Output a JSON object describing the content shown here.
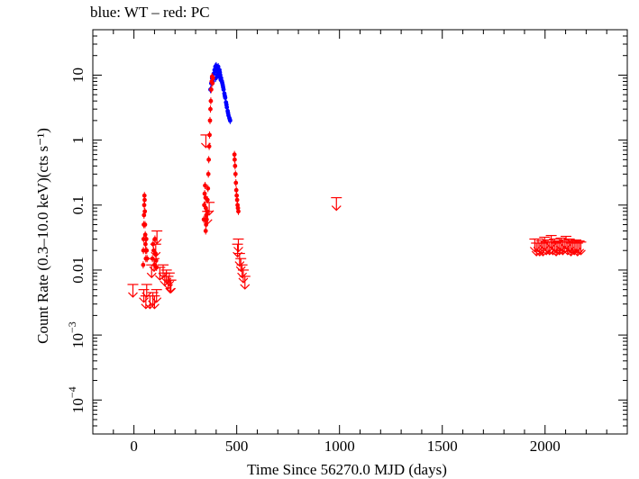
{
  "chart_data": {
    "type": "scatter",
    "title": "blue: WT – red: PC",
    "xlabel": "Time Since 56270.0 MJD (days)",
    "ylabel": "Count Rate (0.3–10.0 keV)(cts s⁻¹)",
    "xscale": "linear",
    "yscale": "log",
    "xlim": [
      -200,
      2400
    ],
    "ylim": [
      3e-05,
      50
    ],
    "x_ticks": [
      0,
      500,
      1000,
      1500,
      2000
    ],
    "x_tick_labels": [
      "0",
      "500",
      "1000",
      "1500",
      "2000"
    ],
    "y_ticks": [
      0.0001,
      0.001,
      0.01,
      0.1,
      1,
      10
    ],
    "y_tick_labels": [
      {
        "base": "10",
        "exp": "−4"
      },
      {
        "base": "10",
        "exp": "−3"
      },
      {
        "base": "0.01",
        "exp": ""
      },
      {
        "base": "0.1",
        "exp": ""
      },
      {
        "base": "1",
        "exp": ""
      },
      {
        "base": "10",
        "exp": ""
      }
    ],
    "grid": false,
    "legend": "none",
    "series": [
      {
        "name": "WT",
        "color": "#0000ff",
        "kind": "points",
        "points": [
          [
            372,
            6.0
          ],
          [
            376,
            7.5
          ],
          [
            380,
            9.0
          ],
          [
            384,
            8.0
          ],
          [
            388,
            10.5
          ],
          [
            392,
            12.0
          ],
          [
            396,
            13.5
          ],
          [
            400,
            14.0
          ],
          [
            404,
            13.0
          ],
          [
            408,
            12.5
          ],
          [
            412,
            11.0
          ],
          [
            416,
            12.0
          ],
          [
            420,
            10.0
          ],
          [
            424,
            9.0
          ],
          [
            428,
            8.0
          ],
          [
            432,
            7.0
          ],
          [
            436,
            6.0
          ],
          [
            440,
            5.2
          ],
          [
            444,
            4.5
          ],
          [
            448,
            3.8
          ],
          [
            452,
            3.2
          ],
          [
            456,
            2.8
          ],
          [
            460,
            2.4
          ],
          [
            464,
            2.2
          ],
          [
            468,
            2.0
          ],
          [
            398,
            9.0
          ],
          [
            406,
            10.0
          ],
          [
            414,
            9.5
          ],
          [
            422,
            8.5
          ],
          [
            430,
            7.5
          ],
          [
            410,
            13.5
          ],
          [
            402,
            11.5
          ],
          [
            418,
            11.0
          ],
          [
            426,
            8.2
          ],
          [
            434,
            6.5
          ],
          [
            442,
            4.8
          ],
          [
            450,
            3.5
          ],
          [
            458,
            2.6
          ],
          [
            466,
            2.1
          ]
        ]
      },
      {
        "name": "PC",
        "color": "#ff0000",
        "kind": "points",
        "points": [
          [
            45,
            0.012
          ],
          [
            46,
            0.02
          ],
          [
            47,
            0.03
          ],
          [
            48,
            0.05
          ],
          [
            49,
            0.07
          ],
          [
            50,
            0.1
          ],
          [
            51,
            0.14
          ],
          [
            52,
            0.12
          ],
          [
            53,
            0.08
          ],
          [
            54,
            0.05
          ],
          [
            55,
            0.035
          ],
          [
            56,
            0.025
          ],
          [
            57,
            0.02
          ],
          [
            58,
            0.015
          ],
          [
            60,
            0.03
          ],
          [
            62,
            0.02
          ],
          [
            64,
            0.015
          ],
          [
            90,
            0.015
          ],
          [
            93,
            0.025
          ],
          [
            96,
            0.02
          ],
          [
            100,
            0.012
          ],
          [
            102,
            0.03
          ],
          [
            105,
            0.018
          ],
          [
            108,
            0.014
          ],
          [
            110,
            0.011
          ],
          [
            340,
            0.06
          ],
          [
            342,
            0.1
          ],
          [
            344,
            0.15
          ],
          [
            346,
            0.2
          ],
          [
            348,
            0.13
          ],
          [
            350,
            0.09
          ],
          [
            352,
            0.07
          ],
          [
            354,
            0.06
          ],
          [
            356,
            0.08
          ],
          [
            358,
            0.12
          ],
          [
            360,
            0.18
          ],
          [
            362,
            0.3
          ],
          [
            364,
            0.5
          ],
          [
            366,
            0.8
          ],
          [
            368,
            1.2
          ],
          [
            370,
            2.0
          ],
          [
            372,
            3.0
          ],
          [
            374,
            4.0
          ],
          [
            376,
            6.0
          ],
          [
            378,
            8.0
          ],
          [
            380,
            9.5
          ],
          [
            382,
            7.5
          ],
          [
            384,
            9.0
          ],
          [
            349,
            0.04
          ],
          [
            351,
            0.05
          ],
          [
            347,
            0.06
          ],
          [
            490,
            0.5
          ],
          [
            492,
            0.4
          ],
          [
            494,
            0.3
          ],
          [
            496,
            0.22
          ],
          [
            498,
            0.17
          ],
          [
            500,
            0.14
          ],
          [
            502,
            0.12
          ],
          [
            504,
            0.1
          ],
          [
            506,
            0.09
          ],
          [
            508,
            0.08
          ],
          [
            489,
            0.6
          ]
        ]
      },
      {
        "name": "PC upper limits",
        "color": "#ff0000",
        "kind": "upper-limit",
        "points": [
          [
            -5,
            0.006
          ],
          [
            48,
            0.005
          ],
          [
            58,
            0.004
          ],
          [
            62,
            0.006
          ],
          [
            78,
            0.004
          ],
          [
            92,
            0.0045
          ],
          [
            100,
            0.004
          ],
          [
            110,
            0.005
          ],
          [
            86,
            0.012
          ],
          [
            98,
            0.015
          ],
          [
            106,
            0.025
          ],
          [
            112,
            0.04
          ],
          [
            126,
            0.011
          ],
          [
            142,
            0.012
          ],
          [
            150,
            0.009
          ],
          [
            158,
            0.01
          ],
          [
            166,
            0.008
          ],
          [
            172,
            0.009
          ],
          [
            176,
            0.007
          ],
          [
            180,
            0.007
          ],
          [
            350,
            1.2
          ],
          [
            358,
            0.08
          ],
          [
            366,
            0.11
          ],
          [
            504,
            0.025
          ],
          [
            508,
            0.03
          ],
          [
            514,
            0.018
          ],
          [
            520,
            0.015
          ],
          [
            526,
            0.012
          ],
          [
            532,
            0.01
          ],
          [
            540,
            0.008
          ],
          [
            985,
            0.13
          ],
          [
            1950,
            0.03
          ],
          [
            1958,
            0.026
          ],
          [
            1966,
            0.03
          ],
          [
            1974,
            0.026
          ],
          [
            1982,
            0.028
          ],
          [
            1990,
            0.026
          ],
          [
            1998,
            0.032
          ],
          [
            2006,
            0.027
          ],
          [
            2014,
            0.029
          ],
          [
            2022,
            0.027
          ],
          [
            2030,
            0.034
          ],
          [
            2038,
            0.027
          ],
          [
            2046,
            0.03
          ],
          [
            2054,
            0.026
          ],
          [
            2062,
            0.028
          ],
          [
            2070,
            0.027
          ],
          [
            2078,
            0.031
          ],
          [
            2086,
            0.027
          ],
          [
            2094,
            0.029
          ],
          [
            2102,
            0.033
          ],
          [
            2110,
            0.027
          ],
          [
            2118,
            0.03
          ],
          [
            2126,
            0.026
          ],
          [
            2134,
            0.028
          ],
          [
            2142,
            0.027
          ],
          [
            2150,
            0.029
          ],
          [
            2158,
            0.026
          ],
          [
            2166,
            0.028
          ],
          [
            2174,
            0.027
          ]
        ]
      }
    ]
  }
}
